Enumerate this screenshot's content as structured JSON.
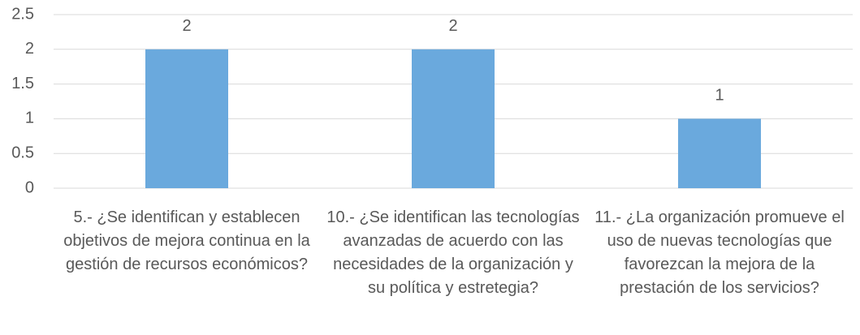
{
  "chart_data": {
    "type": "bar",
    "categories": [
      "5.- ¿Se identifican y establecen objetivos de mejora continua en la gestión de recursos económicos?",
      "10.- ¿Se identifican las tecnologías avanzadas de acuerdo con las necesidades de la organización y su política y estretegia?",
      "11.- ¿La organización promueve el uso de nuevas tecnologías que favorezcan la mejora de la prestación de los servicios?"
    ],
    "values": [
      2,
      2,
      1
    ],
    "color": "#6aa9dd",
    "ylim": [
      0,
      2.5
    ],
    "yticks": [
      0,
      0.5,
      1,
      1.5,
      2,
      2.5
    ],
    "grid": true
  }
}
